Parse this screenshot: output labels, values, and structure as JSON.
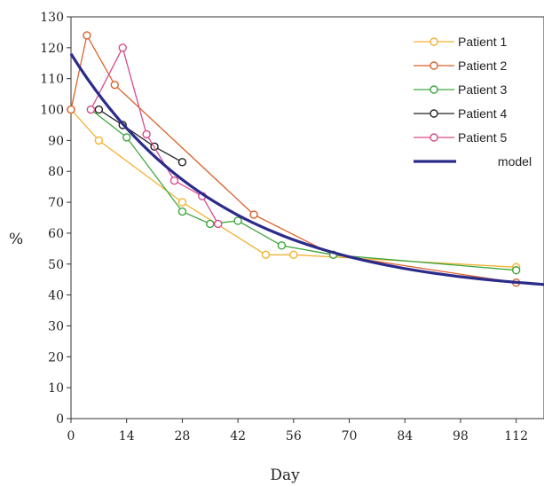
{
  "chart_data": {
    "type": "line",
    "xlabel": "Day",
    "ylabel": "%",
    "xlim": [
      0,
      119
    ],
    "ylim": [
      0,
      130
    ],
    "xticks": [
      0,
      14,
      28,
      42,
      56,
      70,
      84,
      98,
      112
    ],
    "yticks": [
      0,
      10,
      20,
      30,
      40,
      50,
      60,
      70,
      80,
      90,
      100,
      110,
      120,
      130
    ],
    "legend_position": "top-right",
    "grid": false,
    "series": [
      {
        "name": "Patient 1",
        "color": "#F2B233",
        "marker": "circle",
        "x": [
          0,
          7,
          28,
          49,
          56,
          112
        ],
        "y": [
          100,
          90,
          70,
          53,
          53,
          49
        ]
      },
      {
        "name": "Patient 2",
        "color": "#D9622B",
        "marker": "circle",
        "x": [
          0,
          4,
          11,
          46,
          66,
          112
        ],
        "y": [
          100,
          124,
          108,
          66,
          53,
          44
        ]
      },
      {
        "name": "Patient 3",
        "color": "#3DA63D",
        "marker": "circle",
        "x": [
          5,
          14,
          28,
          35,
          42,
          53,
          66,
          112
        ],
        "y": [
          100,
          91,
          67,
          63,
          64,
          56,
          53,
          48
        ]
      },
      {
        "name": "Patient 4",
        "color": "#222222",
        "marker": "circle",
        "x": [
          7,
          13,
          21,
          28
        ],
        "y": [
          100,
          95,
          88,
          83
        ]
      },
      {
        "name": "Patient 5",
        "color": "#D94A8C",
        "marker": "circle",
        "x": [
          5,
          13,
          19,
          26,
          33,
          37
        ],
        "y": [
          100,
          120,
          92,
          77,
          72,
          63
        ]
      },
      {
        "name": "model",
        "color": "#2B2B8C",
        "marker": "none",
        "curve": "exp_decay",
        "x": [
          0,
          7,
          14,
          21,
          28,
          35,
          42,
          49,
          56,
          63,
          70,
          77,
          84,
          91,
          98,
          105,
          112,
          119
        ],
        "y": [
          118,
          107.9,
          99.1,
          91.5,
          84.8,
          78.9,
          73.8,
          69.4,
          65.5,
          62.1,
          59.1,
          56.5,
          54.2,
          52.2,
          50.5,
          49.0,
          47.7,
          46.5
        ]
      }
    ]
  }
}
